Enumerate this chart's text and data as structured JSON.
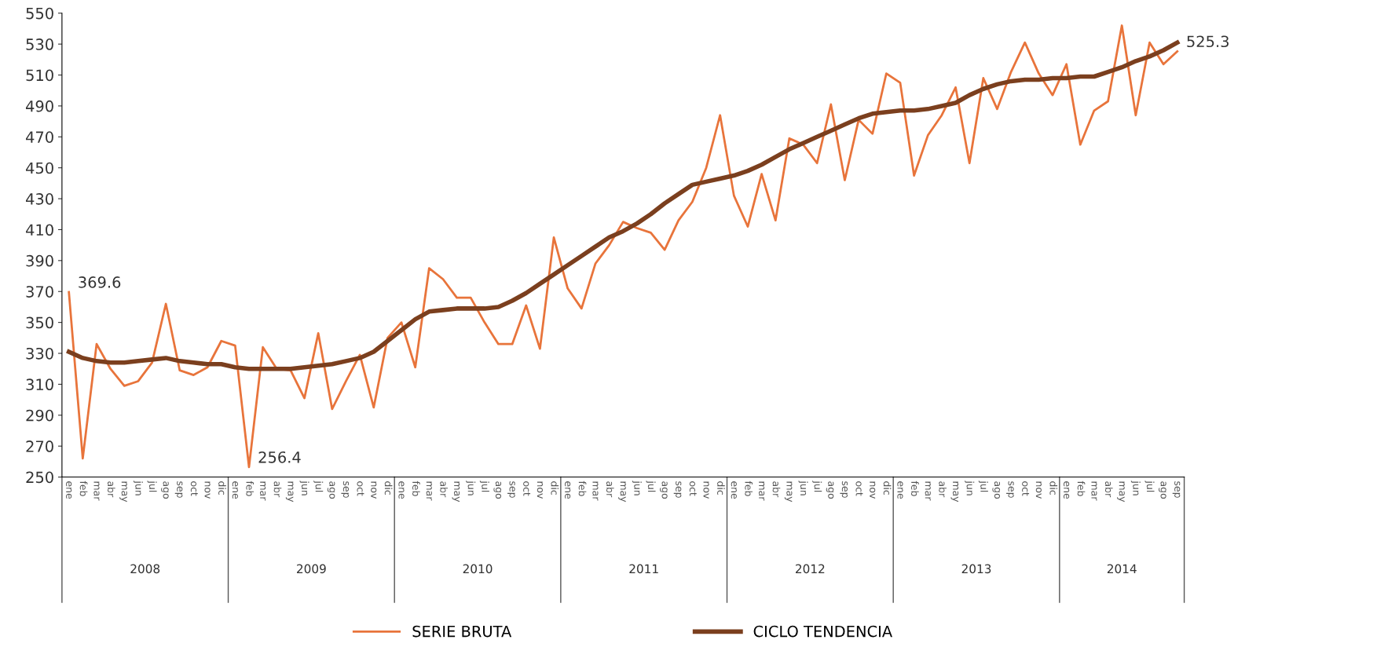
{
  "chart_data": {
    "type": "line",
    "categories": [
      "ene",
      "feb",
      "mar",
      "abr",
      "may",
      "jun",
      "jul",
      "ago",
      "sep",
      "oct",
      "nov",
      "dic",
      "ene",
      "feb",
      "mar",
      "abr",
      "may",
      "jun",
      "jul",
      "ago",
      "sep",
      "oct",
      "nov",
      "dic",
      "ene",
      "feb",
      "mar",
      "abr",
      "may",
      "jun",
      "jul",
      "ago",
      "sep",
      "oct",
      "nov",
      "dic",
      "ene",
      "feb",
      "mar",
      "abr",
      "may",
      "jun",
      "jul",
      "ago",
      "sep",
      "oct",
      "nov",
      "dic",
      "ene",
      "feb",
      "mar",
      "abr",
      "may",
      "jun",
      "jul",
      "ago",
      "sep",
      "oct",
      "nov",
      "dic",
      "ene",
      "feb",
      "mar",
      "abr",
      "may",
      "jun",
      "jul",
      "ago",
      "sep",
      "oct",
      "nov",
      "dic",
      "ene",
      "feb",
      "mar",
      "abr",
      "may",
      "jun",
      "jul",
      "ago",
      "sep"
    ],
    "annotations": [
      "2008",
      "2009",
      "2010",
      "2011",
      "2012",
      "2013",
      "2014"
    ],
    "series": [
      {
        "name": "SERIE BRUTA",
        "color": "#e8743b",
        "values": [
          369.6,
          262,
          336,
          320,
          309,
          312,
          324,
          362,
          319,
          316,
          321,
          338,
          335,
          256.4,
          334,
          320,
          319,
          301,
          343,
          294,
          312,
          329,
          295,
          340,
          350,
          321,
          385,
          378,
          366,
          366,
          350,
          336,
          336,
          361,
          333,
          405,
          372,
          359,
          388,
          400,
          415,
          411,
          408,
          397,
          416,
          428,
          450,
          484,
          432,
          412,
          446,
          416,
          469,
          465,
          453,
          491,
          442,
          481,
          472,
          511,
          505,
          445,
          471,
          484,
          502,
          453,
          508,
          488,
          512,
          531,
          511,
          497,
          517,
          465,
          487,
          493,
          542,
          484,
          531,
          517,
          525.3
        ],
        "value_labels": [
          "369.6",
          null,
          null,
          null,
          null,
          null,
          null,
          null,
          null,
          null,
          null,
          null,
          null,
          "256.4",
          null,
          null,
          null,
          null,
          null,
          null,
          null,
          null,
          null,
          null,
          null,
          null,
          null,
          null,
          null,
          null,
          null,
          null,
          null,
          null,
          null,
          null,
          null,
          null,
          null,
          null,
          null,
          null,
          null,
          null,
          null,
          null,
          null,
          null,
          null,
          null,
          null,
          null,
          null,
          null,
          null,
          null,
          null,
          null,
          null,
          null,
          null,
          null,
          null,
          null,
          null,
          null,
          null,
          null,
          null,
          null,
          null,
          null,
          null,
          null,
          null,
          null,
          null,
          null,
          null,
          null,
          "525.3"
        ]
      },
      {
        "name": "CICLO TENDENCIA",
        "color": "#7b3f1e",
        "values": [
          331,
          327,
          325,
          324,
          324,
          325,
          326,
          327,
          325,
          324,
          323,
          323,
          321,
          320,
          320,
          320,
          320,
          321,
          322,
          323,
          325,
          327,
          331,
          338,
          345,
          352,
          357,
          358,
          359,
          359,
          359,
          360,
          364,
          369,
          375,
          381,
          387,
          393,
          399,
          405,
          409,
          414,
          420,
          427,
          433,
          439,
          441,
          443,
          445,
          448,
          452,
          457,
          462,
          466,
          470,
          474,
          478,
          482,
          485,
          486,
          487,
          487,
          488,
          490,
          492,
          497,
          501,
          504,
          506,
          507,
          507,
          508,
          508,
          509,
          509,
          512,
          515,
          519,
          522,
          526,
          531
        ]
      }
    ],
    "ylim": [
      250,
      550
    ],
    "yticks": [
      250,
      270,
      290,
      310,
      330,
      350,
      370,
      390,
      410,
      430,
      450,
      470,
      490,
      510,
      530,
      550
    ],
    "grid": false,
    "legend": "bottom",
    "marker": "none",
    "line_style": "solid"
  }
}
